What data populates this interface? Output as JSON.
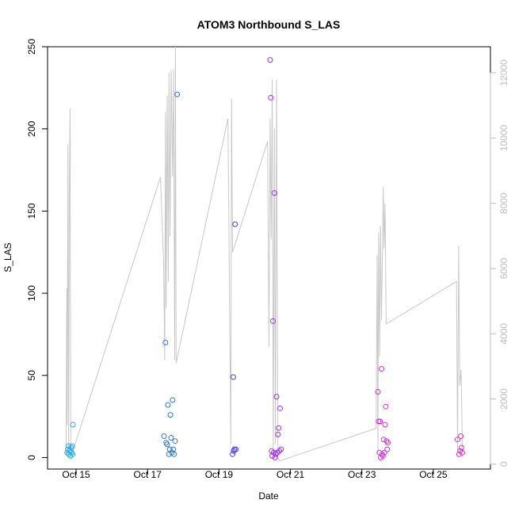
{
  "chart_data": {
    "type": "scatter",
    "title": "ATOM3 Northbound S_LAS",
    "xlabel": "Date",
    "ylabel": "S_LAS",
    "x_axis": {
      "start": "Oct 14",
      "end": "Oct 26",
      "ticks": [
        {
          "day": 15,
          "label": "Oct 15"
        },
        {
          "day": 17,
          "label": "Oct 17"
        },
        {
          "day": 19,
          "label": "Oct 19"
        },
        {
          "day": 21,
          "label": "Oct 21"
        },
        {
          "day": 23,
          "label": "Oct 23"
        },
        {
          "day": 25,
          "label": "Oct 25"
        }
      ]
    },
    "y_left": {
      "ylim": [
        -7,
        250
      ],
      "ticks": [
        0,
        50,
        100,
        150,
        200,
        250
      ]
    },
    "y_right": {
      "ylim": [
        -150,
        12800
      ],
      "ticks": [
        0,
        2000,
        4000,
        6000,
        8000,
        10000,
        12000
      ],
      "color": "#bdbdbd"
    },
    "grid": false,
    "colors": {
      "line": "#c8c8c8",
      "right_axis": "#bdbdbd"
    },
    "points": [
      {
        "x": 14.75,
        "y": 3,
        "color": "#2aa8e6"
      },
      {
        "x": 14.77,
        "y": 5,
        "color": "#2aa8e6"
      },
      {
        "x": 14.79,
        "y": 7,
        "color": "#2aa8e6"
      },
      {
        "x": 14.8,
        "y": 2,
        "color": "#2aa8e6"
      },
      {
        "x": 14.82,
        "y": 4,
        "color": "#2aa8e6"
      },
      {
        "x": 14.84,
        "y": 1,
        "color": "#2aa8e6"
      },
      {
        "x": 14.86,
        "y": 6,
        "color": "#2aa8e6"
      },
      {
        "x": 14.87,
        "y": 3,
        "color": "#2aa8e6"
      },
      {
        "x": 14.89,
        "y": 7,
        "color": "#2aa8e6"
      },
      {
        "x": 14.9,
        "y": 2,
        "color": "#2aa8e6"
      },
      {
        "x": 14.91,
        "y": 20,
        "color": "#2aa8e6"
      },
      {
        "x": 17.46,
        "y": 13,
        "color": "#2a7ad8"
      },
      {
        "x": 17.5,
        "y": 70,
        "color": "#2a7ad8"
      },
      {
        "x": 17.52,
        "y": 9,
        "color": "#2a7ad8"
      },
      {
        "x": 17.55,
        "y": 8,
        "color": "#2a7ad8"
      },
      {
        "x": 17.57,
        "y": 32,
        "color": "#2a7ad8"
      },
      {
        "x": 17.6,
        "y": 2,
        "color": "#2a7ad8"
      },
      {
        "x": 17.62,
        "y": 5,
        "color": "#2a7ad8"
      },
      {
        "x": 17.64,
        "y": 26,
        "color": "#2a7ad8"
      },
      {
        "x": 17.66,
        "y": 12,
        "color": "#2a7ad8"
      },
      {
        "x": 17.68,
        "y": 3,
        "color": "#2a7ad8"
      },
      {
        "x": 17.7,
        "y": 35,
        "color": "#2a7ad8"
      },
      {
        "x": 17.72,
        "y": 5,
        "color": "#2a7ad8"
      },
      {
        "x": 17.74,
        "y": 2,
        "color": "#2a7ad8"
      },
      {
        "x": 17.77,
        "y": 10,
        "color": "#2a7ad8"
      },
      {
        "x": 17.83,
        "y": 221,
        "color": "#2a7ad8"
      },
      {
        "x": 19.38,
        "y": 2,
        "color": "#4b3fe0"
      },
      {
        "x": 19.4,
        "y": 49,
        "color": "#4b3fe0"
      },
      {
        "x": 19.41,
        "y": 4,
        "color": "#4b3fe0"
      },
      {
        "x": 19.43,
        "y": 5,
        "color": "#4b3fe0"
      },
      {
        "x": 19.45,
        "y": 142,
        "color": "#4b3fe0"
      },
      {
        "x": 19.47,
        "y": 5,
        "color": "#4b3fe0"
      },
      {
        "x": 20.43,
        "y": 242,
        "color": "#a030e8"
      },
      {
        "x": 20.45,
        "y": 219,
        "color": "#a030e8"
      },
      {
        "x": 20.47,
        "y": 4,
        "color": "#a030e8"
      },
      {
        "x": 20.49,
        "y": 1,
        "color": "#a030e8"
      },
      {
        "x": 20.51,
        "y": 83,
        "color": "#a030e8"
      },
      {
        "x": 20.53,
        "y": 3,
        "color": "#a030e8"
      },
      {
        "x": 20.55,
        "y": 161,
        "color": "#a030e8"
      },
      {
        "x": 20.57,
        "y": 0,
        "color": "#a030e8"
      },
      {
        "x": 20.59,
        "y": 2,
        "color": "#a030e8"
      },
      {
        "x": 20.61,
        "y": 37,
        "color": "#a030e8"
      },
      {
        "x": 20.63,
        "y": 3,
        "color": "#a030e8"
      },
      {
        "x": 20.65,
        "y": 14,
        "color": "#a030e8"
      },
      {
        "x": 20.67,
        "y": 18,
        "color": "#a030e8"
      },
      {
        "x": 20.69,
        "y": 4,
        "color": "#a030e8"
      },
      {
        "x": 20.71,
        "y": 30,
        "color": "#a030e8"
      },
      {
        "x": 20.74,
        "y": 5,
        "color": "#a030e8"
      },
      {
        "x": 23.45,
        "y": 40,
        "color": "#d030d8"
      },
      {
        "x": 23.47,
        "y": 22,
        "color": "#d030d8"
      },
      {
        "x": 23.49,
        "y": 3,
        "color": "#d030d8"
      },
      {
        "x": 23.51,
        "y": 22,
        "color": "#d030d8"
      },
      {
        "x": 23.53,
        "y": 0,
        "color": "#d030d8"
      },
      {
        "x": 23.55,
        "y": 54,
        "color": "#d030d8"
      },
      {
        "x": 23.57,
        "y": 2,
        "color": "#d030d8"
      },
      {
        "x": 23.59,
        "y": 1,
        "color": "#d030d8"
      },
      {
        "x": 23.61,
        "y": 11,
        "color": "#d030d8"
      },
      {
        "x": 23.63,
        "y": 3,
        "color": "#d030d8"
      },
      {
        "x": 23.65,
        "y": 20,
        "color": "#d030d8"
      },
      {
        "x": 23.67,
        "y": 31,
        "color": "#d030d8"
      },
      {
        "x": 23.69,
        "y": 10,
        "color": "#d030d8"
      },
      {
        "x": 23.71,
        "y": 5,
        "color": "#d030d8"
      },
      {
        "x": 23.73,
        "y": 9,
        "color": "#d030d8"
      },
      {
        "x": 25.68,
        "y": 11,
        "color": "#e030c8"
      },
      {
        "x": 25.72,
        "y": 2,
        "color": "#e030c8"
      },
      {
        "x": 25.75,
        "y": 4,
        "color": "#e030c8"
      },
      {
        "x": 25.77,
        "y": 13,
        "color": "#e030c8"
      },
      {
        "x": 25.79,
        "y": 6,
        "color": "#e030c8"
      },
      {
        "x": 25.81,
        "y": 3,
        "color": "#e030c8"
      }
    ],
    "line_right_axis": [
      [
        14.72,
        300
      ],
      [
        14.74,
        5400
      ],
      [
        14.75,
        1200
      ],
      [
        14.77,
        9800
      ],
      [
        14.79,
        400
      ],
      [
        14.81,
        8200
      ],
      [
        14.83,
        10900
      ],
      [
        14.85,
        600
      ],
      [
        14.88,
        300
      ],
      [
        17.36,
        8800
      ],
      [
        17.45,
        6200
      ],
      [
        17.48,
        3200
      ],
      [
        17.5,
        10800
      ],
      [
        17.52,
        4800
      ],
      [
        17.55,
        11300
      ],
      [
        17.58,
        5600
      ],
      [
        17.6,
        12000
      ],
      [
        17.63,
        7000
      ],
      [
        17.66,
        12100
      ],
      [
        17.7,
        8800
      ],
      [
        17.73,
        12100
      ],
      [
        17.76,
        3200
      ],
      [
        17.78,
        12800
      ],
      [
        17.8,
        3100
      ],
      [
        19.25,
        10600
      ],
      [
        19.33,
        600
      ],
      [
        19.35,
        11200
      ],
      [
        19.38,
        6500
      ],
      [
        20.36,
        9900
      ],
      [
        20.4,
        3600
      ],
      [
        20.43,
        10600
      ],
      [
        20.46,
        6900
      ],
      [
        20.49,
        11800
      ],
      [
        20.52,
        300
      ],
      [
        20.55,
        10300
      ],
      [
        20.58,
        600
      ],
      [
        20.61,
        11800
      ],
      [
        20.65,
        200
      ],
      [
        20.7,
        100
      ],
      [
        23.4,
        1100
      ],
      [
        23.43,
        6400
      ],
      [
        23.45,
        300
      ],
      [
        23.47,
        7100
      ],
      [
        23.5,
        3300
      ],
      [
        23.52,
        7300
      ],
      [
        23.55,
        4400
      ],
      [
        23.58,
        6900
      ],
      [
        23.6,
        8500
      ],
      [
        23.62,
        6600
      ],
      [
        23.65,
        8000
      ],
      [
        23.68,
        4300
      ],
      [
        25.65,
        5600
      ],
      [
        25.68,
        400
      ],
      [
        25.71,
        6700
      ],
      [
        25.74,
        2400
      ],
      [
        25.78,
        2900
      ],
      [
        25.82,
        200
      ]
    ]
  }
}
